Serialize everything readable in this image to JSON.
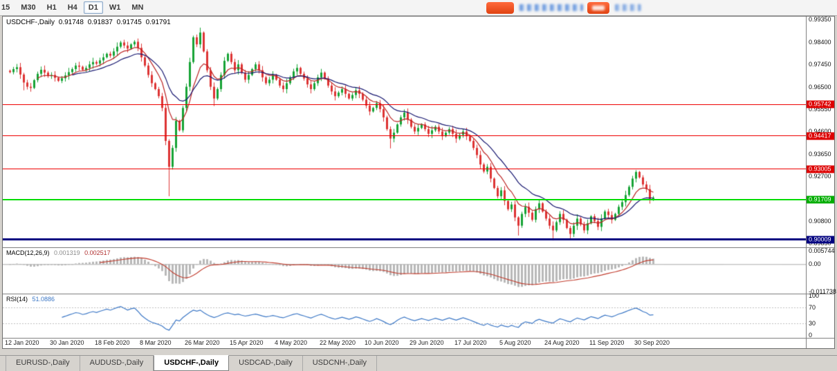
{
  "toolbar": {
    "timeframes": [
      {
        "label": "15",
        "active": false
      },
      {
        "label": "M30",
        "active": false
      },
      {
        "label": "H1",
        "active": false
      },
      {
        "label": "H4",
        "active": false
      },
      {
        "label": "D1",
        "active": true
      },
      {
        "label": "W1",
        "active": false
      },
      {
        "label": "MN",
        "active": false
      }
    ]
  },
  "chart": {
    "symbol_period": "USDCHF-,Daily",
    "open": "0.91748",
    "high": "0.91837",
    "low": "0.91745",
    "close": "0.91791"
  },
  "chart_data": {
    "type": "candlestick",
    "symbol": "USDCHF",
    "timeframe": "Daily",
    "bull_color": "#16a335",
    "bear_color": "#dd3333",
    "x_labels": [
      "12 Jan 2020",
      "30 Jan 2020",
      "18 Feb 2020",
      "8 Mar 2020",
      "26 Mar 2020",
      "15 Apr 2020",
      "4 May 2020",
      "22 May 2020",
      "10 Jun 2020",
      "29 Jun 2020",
      "17 Jul 2020",
      "5 Aug 2020",
      "24 Aug 2020",
      "11 Sep 2020",
      "30 Sep 2020"
    ],
    "x_label_indices": [
      4,
      17,
      30,
      43,
      56,
      69,
      82,
      95,
      108,
      121,
      134,
      147,
      160,
      173,
      186
    ],
    "closes": [
      0.9712,
      0.9725,
      0.9733,
      0.9702,
      0.9668,
      0.965,
      0.9645,
      0.9678,
      0.9705,
      0.9722,
      0.971,
      0.9695,
      0.97,
      0.9688,
      0.9675,
      0.9686,
      0.9698,
      0.9712,
      0.9725,
      0.974,
      0.9735,
      0.9722,
      0.973,
      0.9745,
      0.9755,
      0.9748,
      0.9762,
      0.9775,
      0.979,
      0.9782,
      0.98,
      0.982,
      0.9838,
      0.9825,
      0.9812,
      0.983,
      0.9841,
      0.9815,
      0.9775,
      0.974,
      0.97,
      0.9665,
      0.964,
      0.961,
      0.956,
      0.942,
      0.931,
      0.939,
      0.9505,
      0.9465,
      0.956,
      0.965,
      0.9755,
      0.986,
      0.983,
      0.988,
      0.98,
      0.972,
      0.965,
      0.96,
      0.964,
      0.97,
      0.976,
      0.979,
      0.9755,
      0.972,
      0.9745,
      0.971,
      0.968,
      0.97,
      0.9725,
      0.9745,
      0.972,
      0.969,
      0.9665,
      0.968,
      0.97,
      0.968,
      0.9655,
      0.964,
      0.9665,
      0.969,
      0.9715,
      0.973,
      0.9705,
      0.9685,
      0.966,
      0.964,
      0.9665,
      0.969,
      0.971,
      0.9685,
      0.9655,
      0.963,
      0.961,
      0.9625,
      0.964,
      0.962,
      0.96,
      0.9615,
      0.9635,
      0.962,
      0.9595,
      0.957,
      0.9545,
      0.956,
      0.958,
      0.9555,
      0.952,
      0.947,
      0.943,
      0.9455,
      0.949,
      0.952,
      0.954,
      0.951,
      0.948,
      0.946,
      0.9475,
      0.949,
      0.947,
      0.945,
      0.9465,
      0.948,
      0.946,
      0.944,
      0.9455,
      0.947,
      0.945,
      0.943,
      0.9445,
      0.946,
      0.944,
      0.942,
      0.939,
      0.936,
      0.932,
      0.929,
      0.931,
      0.926,
      0.922,
      0.9185,
      0.921,
      0.9165,
      0.913,
      0.915,
      0.9095,
      0.906,
      0.911,
      0.914,
      0.9115,
      0.9085,
      0.913,
      0.9155,
      0.912,
      0.909,
      0.906,
      0.904,
      0.9075,
      0.911,
      0.9085,
      0.905,
      0.9025,
      0.906,
      0.909,
      0.9065,
      0.904,
      0.907,
      0.91,
      0.908,
      0.9055,
      0.909,
      0.912,
      0.9105,
      0.9085,
      0.911,
      0.914,
      0.916,
      0.919,
      0.9225,
      0.926,
      0.9288,
      0.9265,
      0.9235,
      0.9215,
      0.9172,
      0.9179
    ],
    "special_wicks": {
      "4": {
        "l": 0.9635
      },
      "36": {
        "h": 0.9848
      },
      "46": {
        "l": 0.9185
      },
      "55": {
        "h": 0.9901
      },
      "59": {
        "l": 0.9568
      },
      "110": {
        "l": 0.9388
      },
      "147": {
        "l": 0.9018
      },
      "157": {
        "l": 0.8998
      },
      "162": {
        "l": 0.9
      },
      "181": {
        "h": 0.9296
      }
    },
    "price_axis": {
      "top": 0.9948,
      "bottom": 0.8968,
      "ticks": [
        "0.99350",
        "0.98400",
        "0.97450",
        "0.96500",
        "0.95550",
        "0.94600",
        "0.93650",
        "0.92700",
        "0.91750",
        "0.90800",
        "0.89850"
      ]
    },
    "hlines": [
      {
        "price": 0.95742,
        "label": "0.95742",
        "color": "#ee0000",
        "label_bg": "#dd0000",
        "thickness": 1
      },
      {
        "price": 0.94417,
        "label": "0.94417",
        "color": "#ee0000",
        "label_bg": "#dd0000",
        "thickness": 1
      },
      {
        "price": 0.93005,
        "label": "0.93005",
        "color": "#ee0000",
        "label_bg": "#dd0000",
        "thickness": 1
      },
      {
        "price": 0.91709,
        "label": "0.91709",
        "color": "#00dc00",
        "label_bg": "#00ad00",
        "thickness": 2
      },
      {
        "price": 0.90009,
        "label": "0.90009",
        "color": "#000080",
        "label_bg": "#000080",
        "thickness": 3
      }
    ],
    "moving_averages": [
      {
        "period": 8,
        "color": "#bb2222"
      },
      {
        "period": 18,
        "color": "#14146e"
      }
    ],
    "macd": {
      "label": "MACD(12,26,9)",
      "value_main": "0.001319",
      "value_signal": "0.002517",
      "fast": 12,
      "slow": 26,
      "signal": 9,
      "axis_ticks": [
        "0.005744",
        "0.00",
        "-0.011738"
      ],
      "range_max": 0.007,
      "range_min": -0.0128,
      "hist_color": "#b8b8b8",
      "signal_color": "#c03a2b"
    },
    "rsi": {
      "label": "RSI(14)",
      "value": "51.0886",
      "period": 14,
      "axis_ticks": [
        "100",
        "70",
        "30",
        "0"
      ],
      "levels": [
        70,
        30
      ],
      "color": "#3a76c5"
    }
  },
  "tabs": {
    "items": [
      {
        "label": "EURUSD-,Daily",
        "active": false
      },
      {
        "label": "AUDUSD-,Daily",
        "active": false
      },
      {
        "label": "USDCHF-,Daily",
        "active": true
      },
      {
        "label": "USDCAD-,Daily",
        "active": false
      },
      {
        "label": "USDCNH-,Daily",
        "active": false
      }
    ]
  }
}
